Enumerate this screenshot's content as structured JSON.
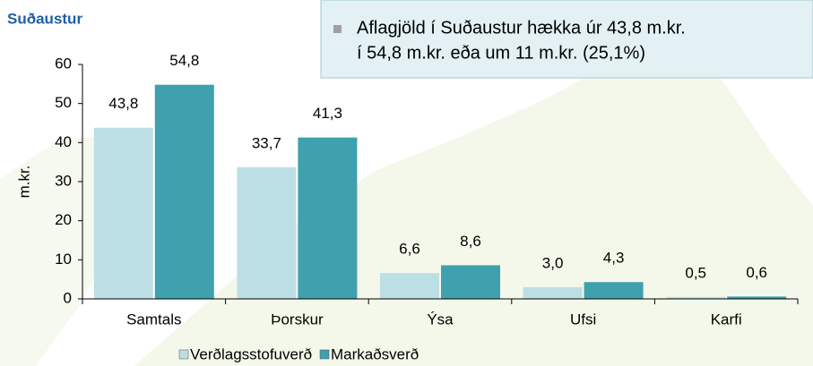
{
  "chart_data": {
    "type": "bar",
    "title": "Suðaustur",
    "annotation": [
      "Aflagjöld í Suðaustur hækka úr 43,8 m.kr.",
      "í 54,8 m.kr. eða um 11 m.kr. (25,1%)"
    ],
    "y_label": "m.kr.",
    "categories": [
      "Samtals",
      "Þorskur",
      "Ýsa",
      "Ufsi",
      "Karfi"
    ],
    "series": [
      {
        "name": "Verðlagsstofuverð",
        "color": "#bcdfe5",
        "values": [
          43.8,
          33.7,
          6.6,
          3.0,
          0.5
        ],
        "value_labels": [
          "43,8",
          "33,7",
          "6,6",
          "3,0",
          "0,5"
        ]
      },
      {
        "name": "Markaðsverð",
        "color": "#3fa0ae",
        "values": [
          54.8,
          41.3,
          8.6,
          4.3,
          0.6
        ],
        "value_labels": [
          "54,8",
          "41,3",
          "8,6",
          "4,3",
          "0,6"
        ]
      }
    ],
    "ylim": [
      0,
      60
    ],
    "yticks": [
      0,
      10,
      20,
      30,
      40,
      50,
      60
    ],
    "grid": false
  }
}
